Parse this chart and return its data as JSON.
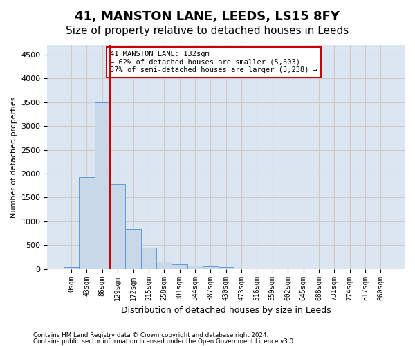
{
  "title": "41, MANSTON LANE, LEEDS, LS15 8FY",
  "subtitle": "Size of property relative to detached houses in Leeds",
  "xlabel": "Distribution of detached houses by size in Leeds",
  "ylabel": "Number of detached properties",
  "footnote1": "Contains HM Land Registry data © Crown copyright and database right 2024.",
  "footnote2": "Contains public sector information licensed under the Open Government Licence v3.0.",
  "bar_values": [
    40,
    1920,
    3500,
    1780,
    840,
    450,
    155,
    100,
    70,
    55,
    40,
    0,
    0,
    0,
    0,
    0,
    0,
    0,
    0,
    0,
    0
  ],
  "bar_labels": [
    "0sqm",
    "43sqm",
    "86sqm",
    "129sqm",
    "172sqm",
    "215sqm",
    "258sqm",
    "301sqm",
    "344sqm",
    "387sqm",
    "430sqm",
    "473sqm",
    "516sqm",
    "559sqm",
    "602sqm",
    "645sqm",
    "688sqm",
    "731sqm",
    "774sqm",
    "817sqm",
    "860sqm"
  ],
  "bar_color": "#c8d8e8",
  "bar_edge_color": "#5b9bd5",
  "bar_width": 1.0,
  "vline_color": "#cc0000",
  "annotation_text": "41 MANSTON LANE: 132sqm\n← 62% of detached houses are smaller (5,503)\n37% of semi-detached houses are larger (3,238) →",
  "annotation_box_color": "#cc0000",
  "ylim": [
    0,
    4700
  ],
  "yticks": [
    0,
    500,
    1000,
    1500,
    2000,
    2500,
    3000,
    3500,
    4000,
    4500
  ],
  "grid_color": "#cccccc",
  "bg_color": "#dce6f1",
  "title_fontsize": 13,
  "subtitle_fontsize": 11
}
